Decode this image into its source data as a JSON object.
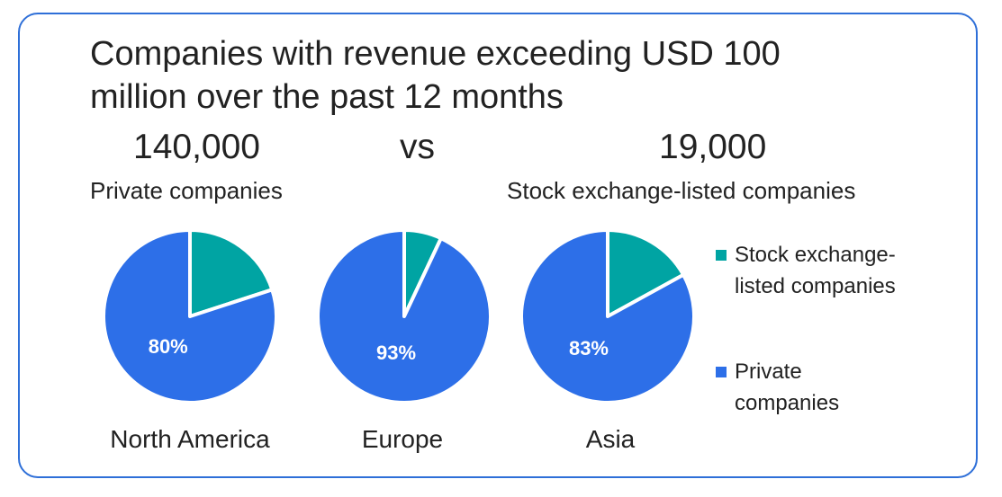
{
  "title": "Companies with revenue exceeding USD 100 million over the past 12 months",
  "comparison": {
    "left_value": "140,000",
    "vs": "vs",
    "right_value": "19,000",
    "left_label": "Private companies",
    "right_label": "Stock exchange-listed companies"
  },
  "colors": {
    "stock_listed": "#00a4a3",
    "private": "#2d6fe8",
    "frame": "#2e6fd8"
  },
  "chart_data": [
    {
      "type": "pie",
      "title": "North America",
      "categories": [
        "Stock exchange-listed companies",
        "Private companies"
      ],
      "values": [
        20,
        80
      ],
      "data_labels": [
        "",
        "80%"
      ]
    },
    {
      "type": "pie",
      "title": "Europe",
      "categories": [
        "Stock exchange-listed companies",
        "Private companies"
      ],
      "values": [
        7,
        93
      ],
      "data_labels": [
        "",
        "93%"
      ]
    },
    {
      "type": "pie",
      "title": "Asia",
      "categories": [
        "Stock exchange-listed companies",
        "Private companies"
      ],
      "values": [
        17,
        83
      ],
      "data_labels": [
        "",
        "83%"
      ]
    }
  ],
  "legend": {
    "placement": "right",
    "items": [
      {
        "label": "Stock exchange-listed companies",
        "color": "#00a4a3"
      },
      {
        "label": "Private companies",
        "color": "#2d6fe8"
      }
    ]
  }
}
